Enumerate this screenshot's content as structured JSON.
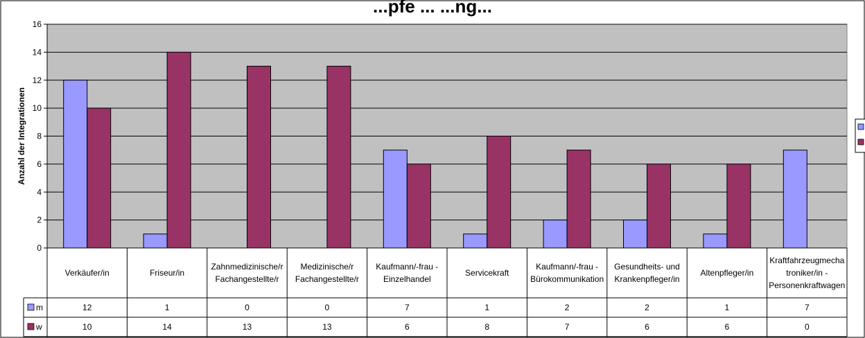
{
  "chart_data": {
    "type": "bar",
    "title": "...pfe ... ...ng...",
    "ylabel": "Anzahl der Integrationen",
    "xlabel": "",
    "ylim": [
      0,
      16
    ],
    "yticks": [
      0,
      2,
      4,
      6,
      8,
      10,
      12,
      14,
      16
    ],
    "grid": true,
    "legend_position": "right",
    "categories": [
      [
        "Verkäufer/in"
      ],
      [
        "Friseur/in"
      ],
      [
        "Zahnmedizinische/r",
        "Fachangestellte/r"
      ],
      [
        "Medizinische/r",
        "Fachangestellte/r"
      ],
      [
        "Kaufmann/-frau -",
        "Einzelhandel"
      ],
      [
        "Servicekraft"
      ],
      [
        "Kaufmann/-frau -",
        "Bürokommunikation"
      ],
      [
        "Gesundheits- und",
        "Krankenpfleger/in"
      ],
      [
        "Altenpfleger/in"
      ],
      [
        "Kraftfahrzeugmecha",
        "troniker/in -",
        "Personenkraftwagen"
      ]
    ],
    "series": [
      {
        "name": "m",
        "color": "#9999ff",
        "values": [
          12,
          1,
          0,
          0,
          7,
          1,
          2,
          2,
          1,
          7
        ]
      },
      {
        "name": "w",
        "color": "#993366",
        "values": [
          10,
          14,
          13,
          13,
          6,
          8,
          7,
          6,
          6,
          0
        ]
      }
    ],
    "legend": [
      "m",
      "w"
    ],
    "plot_background": "#c0c0c0"
  }
}
